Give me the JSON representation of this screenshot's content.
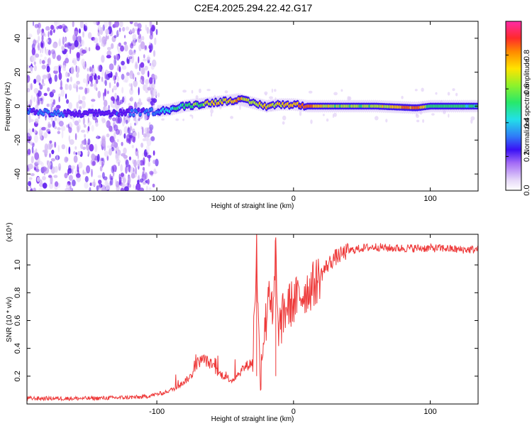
{
  "title": "C2E4.2025.294.22.42.G17",
  "chart_data": [
    {
      "type": "heatmap",
      "name": "spectrogram",
      "xlabel": "Height of straight line (km)",
      "ylabel": "Frequency (Hz)",
      "xlim": [
        -195,
        135
      ],
      "ylim": [
        -50,
        50
      ],
      "xticks": [
        -100,
        0,
        100
      ],
      "xtick_labels": [
        "-100",
        "0",
        "100"
      ],
      "yticks": [
        -40,
        -20,
        0,
        20,
        40
      ],
      "ytick_labels": [
        "-40",
        "-20",
        "0",
        "20",
        "40"
      ],
      "colorbar": {
        "label": "Normalized spectral amplitude",
        "range": [
          0,
          1
        ],
        "ticks": [
          0.0,
          0.2,
          0.4,
          0.6,
          0.8
        ],
        "tick_labels": [
          "0.0",
          "0.2",
          "0.4",
          "0.6",
          "0.8"
        ]
      },
      "colors": {
        "low": "#e3d2f6",
        "mid": "#6a1cf0",
        "high": "#e8304a"
      },
      "ridge": {
        "x": [
          -195,
          -180,
          -160,
          -140,
          -120,
          -100,
          -90,
          -80,
          -70,
          -60,
          -50,
          -40,
          -30,
          -20,
          -10,
          0,
          10,
          30,
          60,
          90,
          100,
          120,
          135
        ],
        "frequency": [
          -3,
          -4,
          -5,
          -4,
          -4,
          -3,
          -2,
          0,
          1,
          2,
          3,
          4,
          2,
          0,
          1,
          1,
          0,
          0,
          0,
          -1,
          0,
          0,
          0
        ],
        "amplitude": [
          0.3,
          0.4,
          0.3,
          0.25,
          0.35,
          0.4,
          0.5,
          0.6,
          0.65,
          0.8,
          0.8,
          0.85,
          0.75,
          0.8,
          0.8,
          0.85,
          0.95,
          0.7,
          0.7,
          0.95,
          0.6,
          0.6,
          0.55
        ]
      }
    },
    {
      "type": "line",
      "name": "snr",
      "xlabel": "Height of straight line (km)",
      "ylabel": "SNR (10 * v/v)",
      "y_multiplier": "(x10⁴)",
      "xlim": [
        -195,
        135
      ],
      "ylim": [
        0,
        1.22
      ],
      "xticks": [
        -100,
        0,
        100
      ],
      "xtick_labels": [
        "-100",
        "0",
        "100"
      ],
      "yticks": [
        0.2,
        0.4,
        0.6,
        0.8,
        1.0
      ],
      "ytick_labels": [
        "0.2",
        "0.4",
        "0.6",
        "0.8",
        "1.0"
      ],
      "color": "#ee3a3a",
      "x": [
        -195,
        -150,
        -110,
        -95,
        -85,
        -75,
        -70,
        -65,
        -60,
        -55,
        -50,
        -45,
        -40,
        -35,
        -30,
        -27,
        -25,
        -24,
        -22,
        -20,
        -18,
        -15,
        -13,
        -12,
        -10,
        -8,
        -5,
        0,
        5,
        10,
        15,
        20,
        25,
        30,
        40,
        50,
        60,
        70,
        80,
        90,
        100,
        110,
        120,
        135
      ],
      "values": [
        0.04,
        0.04,
        0.05,
        0.08,
        0.12,
        0.2,
        0.3,
        0.32,
        0.28,
        0.22,
        0.2,
        0.17,
        0.22,
        0.27,
        0.3,
        1.13,
        0.3,
        0.25,
        0.5,
        0.6,
        0.9,
        0.55,
        1.17,
        0.6,
        0.55,
        0.62,
        0.7,
        0.73,
        0.78,
        0.82,
        0.86,
        0.93,
        1.0,
        1.05,
        1.1,
        1.12,
        1.13,
        1.12,
        1.12,
        1.12,
        1.12,
        1.12,
        1.11,
        1.11
      ]
    }
  ]
}
